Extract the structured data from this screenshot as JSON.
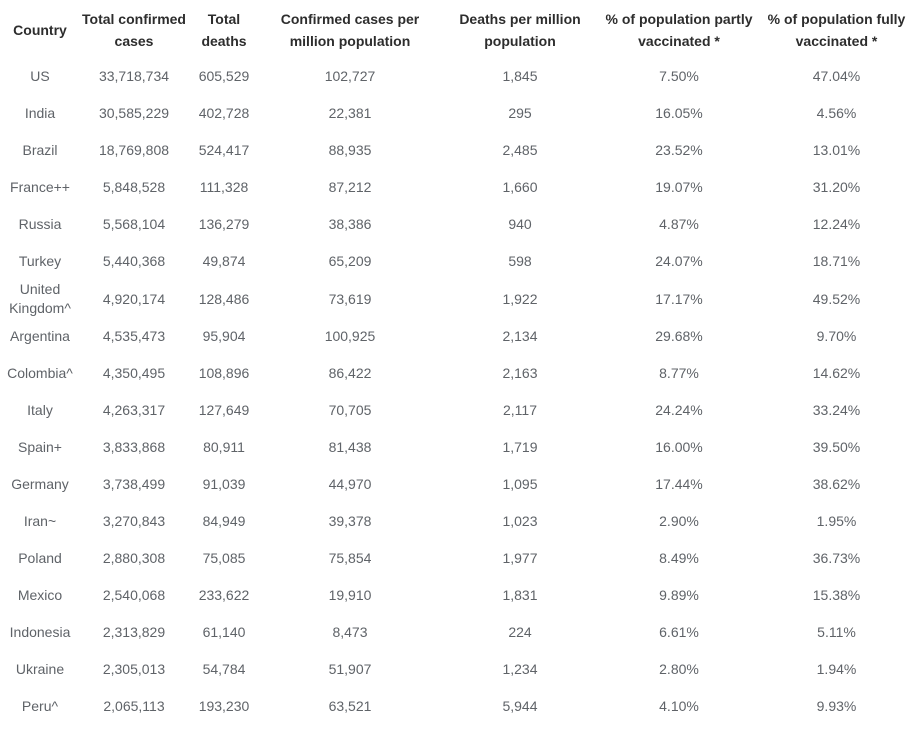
{
  "chart_data": {
    "type": "table",
    "title": "",
    "colors": {
      "header_text": "#2d2d2d",
      "body_text": "#5f6368",
      "background": "#ffffff"
    },
    "columns": [
      {
        "key": "country",
        "label": "Country"
      },
      {
        "key": "total_confirmed_cases",
        "label": "Total confirmed cases"
      },
      {
        "key": "total_deaths",
        "label": "Total deaths"
      },
      {
        "key": "cases_per_million",
        "label": "Confirmed cases per million population"
      },
      {
        "key": "deaths_per_million",
        "label": "Deaths per million population"
      },
      {
        "key": "partly_vaccinated",
        "label": "% of population partly vaccinated *"
      },
      {
        "key": "fully_vaccinated",
        "label": "% of population fully vaccinated *"
      }
    ],
    "rows": [
      [
        "US",
        "33,718,734",
        "605,529",
        "102,727",
        "1,845",
        "7.50%",
        "47.04%"
      ],
      [
        "India",
        "30,585,229",
        "402,728",
        "22,381",
        "295",
        "16.05%",
        "4.56%"
      ],
      [
        "Brazil",
        "18,769,808",
        "524,417",
        "88,935",
        "2,485",
        "23.52%",
        "13.01%"
      ],
      [
        "France++",
        "5,848,528",
        "111,328",
        "87,212",
        "1,660",
        "19.07%",
        "31.20%"
      ],
      [
        "Russia",
        "5,568,104",
        "136,279",
        "38,386",
        "940",
        "4.87%",
        "12.24%"
      ],
      [
        "Turkey",
        "5,440,368",
        "49,874",
        "65,209",
        "598",
        "24.07%",
        "18.71%"
      ],
      [
        "United Kingdom^",
        "4,920,174",
        "128,486",
        "73,619",
        "1,922",
        "17.17%",
        "49.52%"
      ],
      [
        "Argentina",
        "4,535,473",
        "95,904",
        "100,925",
        "2,134",
        "29.68%",
        "9.70%"
      ],
      [
        "Colombia^",
        "4,350,495",
        "108,896",
        "86,422",
        "2,163",
        "8.77%",
        "14.62%"
      ],
      [
        "Italy",
        "4,263,317",
        "127,649",
        "70,705",
        "2,117",
        "24.24%",
        "33.24%"
      ],
      [
        "Spain+",
        "3,833,868",
        "80,911",
        "81,438",
        "1,719",
        "16.00%",
        "39.50%"
      ],
      [
        "Germany",
        "3,738,499",
        "91,039",
        "44,970",
        "1,095",
        "17.44%",
        "38.62%"
      ],
      [
        "Iran~",
        "3,270,843",
        "84,949",
        "39,378",
        "1,023",
        "2.90%",
        "1.95%"
      ],
      [
        "Poland",
        "2,880,308",
        "75,085",
        "75,854",
        "1,977",
        "8.49%",
        "36.73%"
      ],
      [
        "Mexico",
        "2,540,068",
        "233,622",
        "19,910",
        "1,831",
        "9.89%",
        "15.38%"
      ],
      [
        "Indonesia",
        "2,313,829",
        "61,140",
        "8,473",
        "224",
        "6.61%",
        "5.11%"
      ],
      [
        "Ukraine",
        "2,305,013",
        "54,784",
        "51,907",
        "1,234",
        "2.80%",
        "1.94%"
      ],
      [
        "Peru^",
        "2,065,113",
        "193,230",
        "63,521",
        "5,944",
        "4.10%",
        "9.93%"
      ]
    ]
  }
}
